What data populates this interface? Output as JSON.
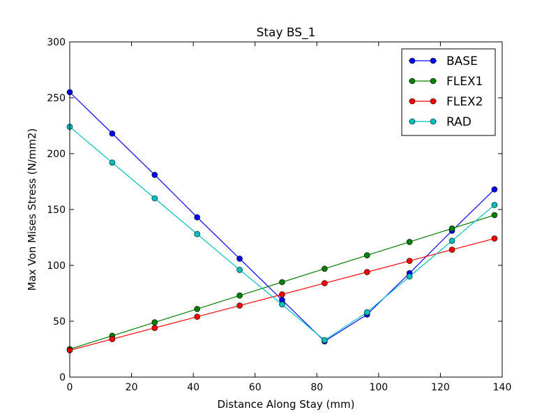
{
  "chart_data": {
    "type": "line",
    "title": "Stay BS_1",
    "xlabel": "Distance Along Stay (mm)",
    "ylabel": "Max Von Mises Stress (N/mm2)",
    "xlim": [
      0,
      140
    ],
    "ylim": [
      0,
      300
    ],
    "xticks": [
      0,
      20,
      40,
      60,
      80,
      100,
      120,
      140
    ],
    "yticks": [
      0,
      50,
      100,
      150,
      200,
      250,
      300
    ],
    "grid": false,
    "legend_position": "top-right",
    "x": [
      0,
      13.75,
      27.5,
      41.25,
      55,
      68.75,
      82.5,
      96.25,
      110,
      123.75,
      137.5
    ],
    "series": [
      {
        "name": "BASE",
        "color": "#0000ff",
        "values": [
          255,
          218,
          181,
          143,
          106,
          69,
          32,
          56,
          93,
          131,
          168
        ]
      },
      {
        "name": "FLEX1",
        "color": "#008000",
        "values": [
          25,
          37,
          49,
          61,
          73,
          85,
          97,
          109,
          121,
          133,
          145
        ]
      },
      {
        "name": "FLEX2",
        "color": "#ff0000",
        "values": [
          24,
          34,
          44,
          54,
          64,
          74,
          84,
          94,
          104,
          114,
          124
        ]
      },
      {
        "name": "RAD",
        "color": "#00bfbf",
        "values": [
          224,
          192,
          160,
          128,
          96,
          65,
          33,
          58,
          90,
          122,
          154
        ]
      }
    ]
  }
}
